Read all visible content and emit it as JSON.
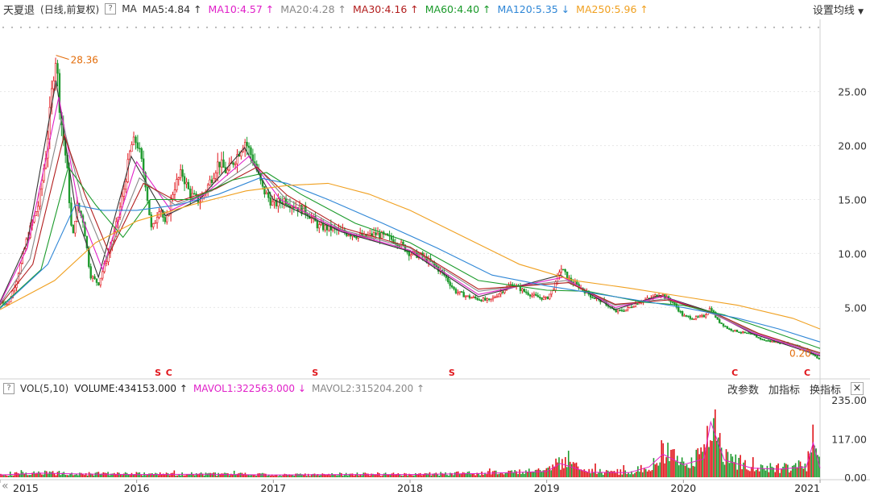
{
  "header": {
    "stock_name": "天夏退",
    "mode": "(日线,前复权)",
    "help_icon": "?",
    "indicator": "MA",
    "settings_label": "设置均线"
  },
  "ma_items": [
    {
      "label": "MA5:4.84",
      "arrow": "↑",
      "color": "#333333"
    },
    {
      "label": "MA10:4.57",
      "arrow": "↑",
      "color": "#e020c8"
    },
    {
      "label": "MA20:4.28",
      "arrow": "↑",
      "color": "#888888"
    },
    {
      "label": "MA30:4.16",
      "arrow": "↑",
      "color": "#b21d1d"
    },
    {
      "label": "MA60:4.40",
      "arrow": "↑",
      "color": "#1a9a2a"
    },
    {
      "label": "MA120:5.35",
      "arrow": "↓",
      "color": "#2e86d6"
    },
    {
      "label": "MA250:5.96",
      "arrow": "↑",
      "color": "#f0a020"
    }
  ],
  "volume_header": {
    "indicator": "VOL(5,10)",
    "volume_label": "VOLUME:434153.000",
    "volume_arrow": "↑",
    "mavol1_label": "MAVOL1:322563.000",
    "mavol1_arrow": "↓",
    "mavol2_label": "MAVOL2:315204.200",
    "mavol2_arrow": "↑",
    "tools": [
      "改参数",
      "加指标",
      "换指标"
    ],
    "close": "×"
  },
  "colors": {
    "up": "#e0151b",
    "down": "#1e9a2e",
    "ma5": "#333333",
    "ma10": "#e020c8",
    "ma20": "#888888",
    "ma30": "#b21d1d",
    "ma60": "#1a9a2a",
    "ma120": "#2e86d6",
    "ma250": "#f0a020",
    "grid": "#e6e6e6"
  },
  "chart_data": [
    {
      "type": "line",
      "title": "",
      "x_axis_ticks": [
        "2015",
        "2016",
        "2017",
        "2018",
        "2019",
        "2020",
        "2021"
      ],
      "y_axis_ticks": [
        "25.00",
        "20.00",
        "15.00",
        "10.00",
        "5.00"
      ],
      "y_tick_values": [
        25,
        20,
        15,
        10,
        5
      ],
      "ylim": [
        -0.5,
        30.5
      ],
      "xlim": [
        2015.0,
        2021.0
      ],
      "price_points": [
        {
          "x": 2015.0,
          "y": 5.6
        },
        {
          "x": 2015.06,
          "y": 5.3
        },
        {
          "x": 2015.12,
          "y": 7.5
        },
        {
          "x": 2015.2,
          "y": 11.5
        },
        {
          "x": 2015.28,
          "y": 14.5
        },
        {
          "x": 2015.34,
          "y": 19.5
        },
        {
          "x": 2015.39,
          "y": 26.5
        },
        {
          "x": 2015.41,
          "y": 28.36
        },
        {
          "x": 2015.44,
          "y": 23.0
        },
        {
          "x": 2015.49,
          "y": 18.0
        },
        {
          "x": 2015.53,
          "y": 11.0
        },
        {
          "x": 2015.56,
          "y": 14.5
        },
        {
          "x": 2015.61,
          "y": 13.0
        },
        {
          "x": 2015.66,
          "y": 8.0
        },
        {
          "x": 2015.72,
          "y": 7.2
        },
        {
          "x": 2015.78,
          "y": 9.5
        },
        {
          "x": 2015.84,
          "y": 12.0
        },
        {
          "x": 2015.9,
          "y": 15.5
        },
        {
          "x": 2015.96,
          "y": 20.0
        },
        {
          "x": 2016.0,
          "y": 20.5
        },
        {
          "x": 2016.06,
          "y": 17.0
        },
        {
          "x": 2016.11,
          "y": 12.0
        },
        {
          "x": 2016.17,
          "y": 14.5
        },
        {
          "x": 2016.21,
          "y": 12.5
        },
        {
          "x": 2016.27,
          "y": 16.0
        },
        {
          "x": 2016.33,
          "y": 17.5
        },
        {
          "x": 2016.39,
          "y": 15.5
        },
        {
          "x": 2016.46,
          "y": 14.8
        },
        {
          "x": 2016.53,
          "y": 16.5
        },
        {
          "x": 2016.6,
          "y": 18.5
        },
        {
          "x": 2016.66,
          "y": 17.5
        },
        {
          "x": 2016.73,
          "y": 19.0
        },
        {
          "x": 2016.79,
          "y": 20.5
        },
        {
          "x": 2016.86,
          "y": 18.5
        },
        {
          "x": 2016.92,
          "y": 16.0
        },
        {
          "x": 2017.0,
          "y": 14.5
        },
        {
          "x": 2017.08,
          "y": 15.0
        },
        {
          "x": 2017.17,
          "y": 14.3
        },
        {
          "x": 2017.25,
          "y": 13.8
        },
        {
          "x": 2017.33,
          "y": 12.5
        },
        {
          "x": 2017.42,
          "y": 12.3
        },
        {
          "x": 2017.5,
          "y": 12.0
        },
        {
          "x": 2017.58,
          "y": 11.8
        },
        {
          "x": 2017.67,
          "y": 11.5
        },
        {
          "x": 2017.75,
          "y": 11.8
        },
        {
          "x": 2017.83,
          "y": 11.5
        },
        {
          "x": 2017.92,
          "y": 11.0
        },
        {
          "x": 2018.0,
          "y": 10.0
        },
        {
          "x": 2018.08,
          "y": 9.8
        },
        {
          "x": 2018.17,
          "y": 9.0
        },
        {
          "x": 2018.25,
          "y": 8.0
        },
        {
          "x": 2018.33,
          "y": 6.5
        },
        {
          "x": 2018.42,
          "y": 6.0
        },
        {
          "x": 2018.5,
          "y": 5.8
        },
        {
          "x": 2018.58,
          "y": 5.6
        },
        {
          "x": 2018.67,
          "y": 6.5
        },
        {
          "x": 2018.75,
          "y": 7.2
        },
        {
          "x": 2018.83,
          "y": 6.5
        },
        {
          "x": 2018.92,
          "y": 6.0
        },
        {
          "x": 2019.0,
          "y": 5.8
        },
        {
          "x": 2019.06,
          "y": 7.0
        },
        {
          "x": 2019.1,
          "y": 8.7
        },
        {
          "x": 2019.17,
          "y": 7.5
        },
        {
          "x": 2019.25,
          "y": 6.8
        },
        {
          "x": 2019.33,
          "y": 6.0
        },
        {
          "x": 2019.42,
          "y": 5.5
        },
        {
          "x": 2019.5,
          "y": 4.6
        },
        {
          "x": 2019.58,
          "y": 4.8
        },
        {
          "x": 2019.67,
          "y": 5.5
        },
        {
          "x": 2019.75,
          "y": 5.8
        },
        {
          "x": 2019.83,
          "y": 6.3
        },
        {
          "x": 2019.92,
          "y": 5.5
        },
        {
          "x": 2020.0,
          "y": 4.2
        },
        {
          "x": 2020.08,
          "y": 4.0
        },
        {
          "x": 2020.15,
          "y": 4.2
        },
        {
          "x": 2020.2,
          "y": 5.0
        },
        {
          "x": 2020.25,
          "y": 3.8
        },
        {
          "x": 2020.33,
          "y": 3.0
        },
        {
          "x": 2020.42,
          "y": 2.7
        },
        {
          "x": 2020.5,
          "y": 2.5
        },
        {
          "x": 2020.58,
          "y": 2.0
        },
        {
          "x": 2020.67,
          "y": 1.8
        },
        {
          "x": 2020.75,
          "y": 1.7
        },
        {
          "x": 2020.83,
          "y": 1.5
        },
        {
          "x": 2020.9,
          "y": 1.1
        },
        {
          "x": 2020.96,
          "y": 0.5
        },
        {
          "x": 2021.0,
          "y": 0.2
        }
      ],
      "ma_lines": [
        {
          "name": "MA5",
          "color_key": "ma5",
          "points": [
            [
              2015.0,
              5.5
            ],
            [
              2015.2,
              11.0
            ],
            [
              2015.41,
              26.0
            ],
            [
              2015.56,
              13.5
            ],
            [
              2015.72,
              7.8
            ],
            [
              2015.96,
              19.0
            ],
            [
              2016.21,
              13.5
            ],
            [
              2016.46,
              15.0
            ],
            [
              2016.79,
              19.8
            ],
            [
              2017.0,
              15.0
            ],
            [
              2017.5,
              12.0
            ],
            [
              2018.0,
              10.2
            ],
            [
              2018.5,
              6.0
            ],
            [
              2019.1,
              8.0
            ],
            [
              2019.5,
              4.8
            ],
            [
              2019.83,
              6.1
            ],
            [
              2020.2,
              4.6
            ],
            [
              2020.5,
              2.6
            ],
            [
              2021.0,
              0.5
            ]
          ]
        },
        {
          "name": "MA10",
          "color_key": "ma10",
          "points": [
            [
              2015.0,
              5.4
            ],
            [
              2015.2,
              10.5
            ],
            [
              2015.43,
              24.5
            ],
            [
              2015.58,
              14.0
            ],
            [
              2015.75,
              8.5
            ],
            [
              2016.0,
              18.5
            ],
            [
              2016.25,
              14.0
            ],
            [
              2016.5,
              15.5
            ],
            [
              2016.82,
              19.0
            ],
            [
              2017.05,
              15.0
            ],
            [
              2017.5,
              12.1
            ],
            [
              2018.0,
              10.3
            ],
            [
              2018.5,
              6.2
            ],
            [
              2019.12,
              7.8
            ],
            [
              2019.5,
              5.0
            ],
            [
              2019.85,
              6.0
            ],
            [
              2020.22,
              4.4
            ],
            [
              2020.5,
              2.7
            ],
            [
              2021.0,
              0.6
            ]
          ]
        },
        {
          "name": "MA20",
          "color_key": "ma20",
          "points": [
            [
              2015.0,
              5.3
            ],
            [
              2015.22,
              9.5
            ],
            [
              2015.45,
              22.5
            ],
            [
              2015.6,
              15.0
            ],
            [
              2015.78,
              9.5
            ],
            [
              2016.02,
              17.0
            ],
            [
              2016.28,
              14.5
            ],
            [
              2016.55,
              15.8
            ],
            [
              2016.85,
              18.5
            ],
            [
              2017.08,
              15.2
            ],
            [
              2017.5,
              12.2
            ],
            [
              2018.0,
              10.5
            ],
            [
              2018.5,
              6.5
            ],
            [
              2019.14,
              7.5
            ],
            [
              2019.5,
              5.2
            ],
            [
              2019.87,
              5.8
            ],
            [
              2020.24,
              4.3
            ],
            [
              2020.5,
              2.8
            ],
            [
              2021.0,
              0.7
            ]
          ]
        },
        {
          "name": "MA30",
          "color_key": "ma30",
          "points": [
            [
              2015.0,
              5.2
            ],
            [
              2015.24,
              9.0
            ],
            [
              2015.47,
              21.0
            ],
            [
              2015.62,
              15.5
            ],
            [
              2015.8,
              10.0
            ],
            [
              2016.05,
              16.5
            ],
            [
              2016.3,
              14.8
            ],
            [
              2016.58,
              16.0
            ],
            [
              2016.88,
              18.0
            ],
            [
              2017.1,
              15.4
            ],
            [
              2017.5,
              12.4
            ],
            [
              2018.0,
              10.6
            ],
            [
              2018.5,
              6.7
            ],
            [
              2019.16,
              7.3
            ],
            [
              2019.5,
              5.3
            ],
            [
              2019.9,
              5.7
            ],
            [
              2020.26,
              4.3
            ],
            [
              2020.55,
              2.6
            ],
            [
              2021.0,
              0.8
            ]
          ]
        },
        {
          "name": "MA60",
          "color_key": "ma60",
          "points": [
            [
              2015.0,
              5.0
            ],
            [
              2015.3,
              8.5
            ],
            [
              2015.5,
              18.0
            ],
            [
              2015.7,
              14.5
            ],
            [
              2015.9,
              11.5
            ],
            [
              2016.1,
              15.0
            ],
            [
              2016.4,
              15.0
            ],
            [
              2016.7,
              16.8
            ],
            [
              2016.95,
              17.5
            ],
            [
              2017.2,
              15.5
            ],
            [
              2017.6,
              12.8
            ],
            [
              2018.0,
              11.0
            ],
            [
              2018.5,
              7.5
            ],
            [
              2019.0,
              6.6
            ],
            [
              2019.3,
              6.5
            ],
            [
              2019.7,
              5.5
            ],
            [
              2020.0,
              5.2
            ],
            [
              2020.3,
              4.3
            ],
            [
              2020.6,
              3.0
            ],
            [
              2021.0,
              1.2
            ]
          ]
        },
        {
          "name": "MA120",
          "color_key": "ma120",
          "points": [
            [
              2015.0,
              4.9
            ],
            [
              2015.35,
              9.0
            ],
            [
              2015.55,
              14.5
            ],
            [
              2015.75,
              14.0
            ],
            [
              2016.0,
              14.0
            ],
            [
              2016.3,
              14.5
            ],
            [
              2016.6,
              15.5
            ],
            [
              2016.9,
              17.0
            ],
            [
              2017.1,
              16.5
            ],
            [
              2017.4,
              15.0
            ],
            [
              2017.8,
              12.8
            ],
            [
              2018.2,
              10.5
            ],
            [
              2018.6,
              8.0
            ],
            [
              2019.0,
              7.0
            ],
            [
              2019.5,
              6.0
            ],
            [
              2020.0,
              5.0
            ],
            [
              2020.4,
              4.0
            ],
            [
              2020.7,
              3.0
            ],
            [
              2021.0,
              1.8
            ]
          ]
        },
        {
          "name": "MA250",
          "color_key": "ma250",
          "points": [
            [
              2015.0,
              4.8
            ],
            [
              2015.4,
              7.5
            ],
            [
              2015.7,
              11.0
            ],
            [
              2016.0,
              13.0
            ],
            [
              2016.4,
              14.5
            ],
            [
              2016.8,
              15.8
            ],
            [
              2017.1,
              16.3
            ],
            [
              2017.4,
              16.5
            ],
            [
              2017.7,
              15.5
            ],
            [
              2018.0,
              14.0
            ],
            [
              2018.4,
              11.5
            ],
            [
              2018.8,
              9.0
            ],
            [
              2019.2,
              7.5
            ],
            [
              2019.6,
              6.8
            ],
            [
              2020.0,
              6.0
            ],
            [
              2020.4,
              5.2
            ],
            [
              2020.8,
              4.0
            ],
            [
              2021.0,
              3.0
            ]
          ]
        }
      ],
      "annotations": [
        {
          "text": "28.36",
          "x": 2015.41,
          "y": 28.36
        },
        {
          "text": "0.20",
          "x": 2021.0,
          "y": 0.2
        }
      ],
      "event_markers": [
        {
          "symbol": "S",
          "x": 2016.15
        },
        {
          "symbol": "C",
          "x": 2016.23
        },
        {
          "symbol": "S",
          "x": 2017.3
        },
        {
          "symbol": "S",
          "x": 2018.3
        },
        {
          "symbol": "C",
          "x": 2020.37
        },
        {
          "symbol": "C",
          "x": 2020.9
        }
      ]
    },
    {
      "type": "bar",
      "title": "",
      "y_axis_ticks": [
        "235.00",
        "117.00",
        "0.00"
      ],
      "y_tick_values": [
        235,
        117,
        0
      ],
      "ylim": [
        0,
        250
      ],
      "xlim": [
        2015.0,
        2021.0
      ],
      "volume_profile": [
        [
          2015.0,
          10
        ],
        [
          2015.3,
          18
        ],
        [
          2015.6,
          14
        ],
        [
          2016.0,
          12
        ],
        [
          2016.5,
          13
        ],
        [
          2017.0,
          10
        ],
        [
          2017.5,
          12
        ],
        [
          2018.0,
          12
        ],
        [
          2018.5,
          16
        ],
        [
          2019.0,
          25
        ],
        [
          2019.1,
          60
        ],
        [
          2019.3,
          22
        ],
        [
          2019.6,
          20
        ],
        [
          2019.75,
          45
        ],
        [
          2019.85,
          100
        ],
        [
          2020.0,
          55
        ],
        [
          2020.15,
          80
        ],
        [
          2020.2,
          240
        ],
        [
          2020.3,
          75
        ],
        [
          2020.5,
          40
        ],
        [
          2020.7,
          35
        ],
        [
          2020.9,
          45
        ],
        [
          2020.95,
          150
        ],
        [
          2021.0,
          40
        ]
      ]
    }
  ]
}
